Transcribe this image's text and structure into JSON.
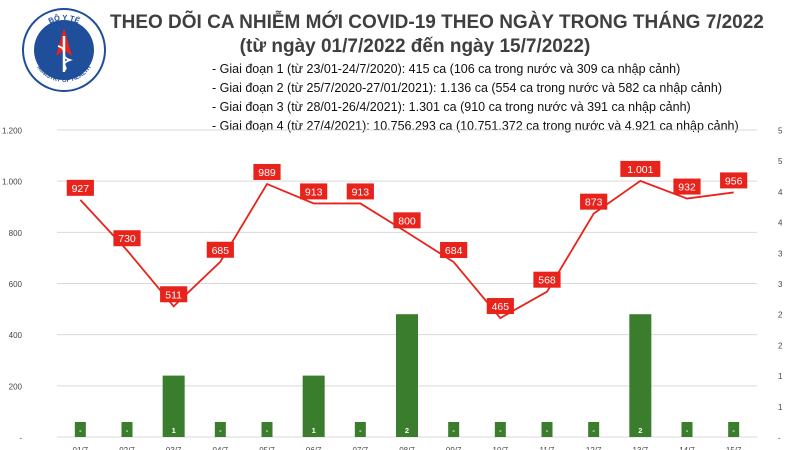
{
  "logo": {
    "text_top": "BỘ Y TẾ",
    "text_bottom": "MINISTRY OF HEALTH"
  },
  "title_line1": "THEO DÕI CA NHIỄM MỚI COVID-19 THEO NGÀY TRONG THÁNG 7/2022",
  "title_line2": "(từ ngày 01/7/2022 đến ngày 15/7/2022)",
  "periods": [
    "- Giai đoạn 1 (từ 23/01-24/7/2020): 415 ca (106 ca trong nước và 309 ca nhập cảnh)",
    "- Giai đoạn 2 (từ 25/7/2020-27/01/2021): 1.136 ca (554 ca trong nước và 582 ca nhập cảnh)",
    "- Giai đoạn 3 (từ 28/01-26/4/2021): 1.301 ca (910 ca trong nước và 391 ca nhập cảnh)",
    "- Giai đoạn 4 (từ 27/4/2021): 10.756.293 ca (10.751.372 ca trong nước và 4.921 ca nhập cảnh)"
  ],
  "colors": {
    "line": "#e8231c",
    "label_bg": "#e8231c",
    "bar": "#3a7d2c",
    "grid": "#d9d9d9",
    "title": "#3f3f3f"
  },
  "chart_data": {
    "type": "bar+line",
    "categories": [
      "01/7",
      "02/7",
      "03/7",
      "04/7",
      "05/7",
      "06/7",
      "07/7",
      "08/7",
      "09/7",
      "10/7",
      "11/7",
      "12/7",
      "13/7",
      "14/7",
      "15/7"
    ],
    "line_values": [
      927,
      730,
      511,
      685,
      989,
      913,
      913,
      800,
      684,
      465,
      568,
      873,
      1001,
      932,
      956
    ],
    "line_labels": [
      "927",
      "730",
      "511",
      "685",
      "989",
      "913",
      "913",
      "800",
      "684",
      "465",
      "568",
      "873",
      "1.001",
      "932",
      "956"
    ],
    "bar_values": [
      0,
      0,
      1,
      0,
      0,
      1,
      0,
      2,
      0,
      0,
      0,
      0,
      2,
      0,
      0
    ],
    "bar_labels": [
      "-",
      "-",
      "1",
      "-",
      "-",
      "1",
      "-",
      "2",
      "-",
      "-",
      "-",
      "-",
      "2",
      "-",
      "-"
    ],
    "y_left": {
      "ticks": [
        0,
        200,
        400,
        600,
        800,
        1000,
        1200
      ],
      "tick_labels": [
        "-",
        "200",
        "400",
        "600",
        "800",
        "1.000",
        "1.200"
      ]
    },
    "y_right": {
      "ticks": [
        0,
        0.5,
        1,
        1.5,
        2,
        2.5,
        3,
        3.5,
        4,
        4.5,
        5
      ],
      "tick_labels": [
        "-",
        "1",
        "1",
        "2",
        "2",
        "3",
        "3",
        "4",
        "4",
        "5",
        "5"
      ]
    },
    "grid": true
  }
}
